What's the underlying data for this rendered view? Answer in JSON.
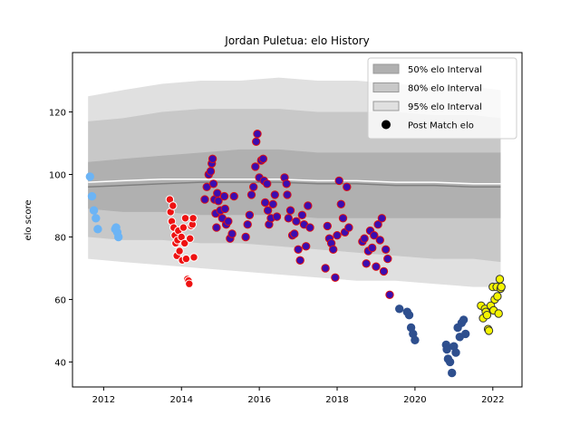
{
  "chart_data": {
    "type": "scatter",
    "title": "Jordan Puletua: elo History",
    "xlabel": "",
    "ylabel": "elo score",
    "xlim": [
      2011.2,
      2022.75
    ],
    "ylim": [
      32,
      139
    ],
    "xticks": [
      2012,
      2014,
      2016,
      2018,
      2020,
      2022
    ],
    "xtick_labels": [
      "2012",
      "2014",
      "2016",
      "2018",
      "2020",
      "2022"
    ],
    "yticks": [
      40,
      60,
      80,
      100,
      120
    ],
    "ytick_labels": [
      "40",
      "60",
      "80",
      "100",
      "120"
    ],
    "grid": false,
    "legend_placement": "top-right",
    "legend": [
      {
        "label": "50% elo Interval",
        "kind": "band",
        "color": "#b0b0b0"
      },
      {
        "label": "80% elo Interval",
        "kind": "band",
        "color": "#c8c8c8"
      },
      {
        "label": "95% elo Interval",
        "kind": "band",
        "color": "#e0e0e0"
      },
      {
        "label": "Post Match elo",
        "kind": "marker",
        "color": "#000000"
      }
    ],
    "colors": {
      "band50": "#b0b0b0",
      "band80": "#c8c8c8",
      "band95": "#e0e0e0",
      "median": "#808080",
      "mean": "#ffffff"
    },
    "interval_x": [
      2011.6,
      2012.5,
      2013.5,
      2014.5,
      2015.5,
      2016.5,
      2017.5,
      2018.5,
      2019.5,
      2020.5,
      2021.5,
      2022.2
    ],
    "band95": {
      "upper": [
        125,
        127,
        129,
        130,
        130,
        131,
        130,
        130,
        129,
        128,
        128,
        127
      ],
      "lower": [
        73,
        72,
        71,
        70,
        69,
        68,
        67,
        66,
        66,
        65,
        64,
        64
      ]
    },
    "band80": {
      "upper": [
        117,
        118,
        120,
        121,
        121,
        121,
        120,
        120,
        120,
        119,
        119,
        118
      ],
      "lower": [
        80,
        79,
        79,
        78,
        78,
        77,
        76,
        75,
        74,
        73,
        73,
        72
      ]
    },
    "band50": {
      "upper": [
        104,
        105,
        106,
        107,
        108,
        108,
        107,
        107,
        107,
        107,
        107,
        107
      ],
      "lower": [
        89,
        88,
        88,
        87,
        87,
        87,
        86,
        86,
        86,
        86,
        86,
        86
      ]
    },
    "median_line": [
      96,
      96.5,
      97,
      97.5,
      97.5,
      97.5,
      97,
      97,
      96.5,
      96.5,
      96,
      96
    ],
    "mean_line": [
      97.5,
      98,
      98.5,
      98.5,
      98.5,
      98.5,
      98,
      98,
      97.5,
      97.5,
      97,
      97
    ],
    "series": [
      {
        "color": "#6cb4f5",
        "edge": "#6cb4f5",
        "x": [
          2011.65,
          2011.7,
          2011.75,
          2011.8,
          2011.85,
          2012.3,
          2012.32,
          2012.35,
          2012.38
        ],
        "y": [
          99.3,
          93,
          88.5,
          86,
          82.5,
          82.5,
          83,
          81.5,
          80
        ]
      },
      {
        "color": "#ee1111",
        "edge": "#ffffff",
        "x": [
          2013.7,
          2013.72,
          2013.75,
          2013.78,
          2013.8,
          2013.83,
          2013.85,
          2013.88,
          2013.9,
          2013.92,
          2013.95,
          2014.0,
          2014.02,
          2014.05,
          2014.08,
          2014.1,
          2014.12,
          2014.15,
          2014.18,
          2014.2,
          2014.22,
          2014.25,
          2014.28,
          2014.3,
          2014.32
        ],
        "y": [
          92,
          88,
          85,
          90,
          83,
          80.5,
          78,
          74,
          79,
          82,
          75.5,
          80,
          72.5,
          83,
          78,
          86,
          73,
          66.5,
          66,
          65,
          79.5,
          83.5,
          84,
          86,
          73.5
        ]
      },
      {
        "color": "#3b0db0",
        "edge": "#dd1111",
        "x": [
          2014.6,
          2014.65,
          2014.7,
          2014.75,
          2014.78,
          2014.8,
          2014.82,
          2014.85,
          2014.88,
          2014.9,
          2014.92,
          2014.95,
          2015.0,
          2015.05,
          2015.1,
          2015.12,
          2015.15,
          2015.2,
          2015.25,
          2015.3,
          2015.35,
          2015.65,
          2015.7,
          2015.75,
          2015.8,
          2015.85,
          2015.9,
          2015.92,
          2015.95,
          2016.0,
          2016.05,
          2016.1,
          2016.12,
          2016.15,
          2016.2,
          2016.22,
          2016.25,
          2016.3,
          2016.35,
          2016.4,
          2016.45,
          2016.65,
          2016.7,
          2016.72,
          2016.75,
          2016.8,
          2016.85,
          2016.9,
          2016.95,
          2017.0,
          2017.05,
          2017.1,
          2017.15,
          2017.2,
          2017.25,
          2017.3,
          2017.7,
          2017.75,
          2017.8,
          2017.85,
          2017.9,
          2017.95,
          2018.0,
          2018.05,
          2018.1,
          2018.15,
          2018.2,
          2018.25,
          2018.3,
          2018.65,
          2018.7,
          2018.75,
          2018.8,
          2018.85,
          2018.9,
          2018.95,
          2019.0,
          2019.05,
          2019.1,
          2019.15,
          2019.2,
          2019.25,
          2019.3,
          2019.35
        ],
        "y": [
          92,
          96,
          100,
          101,
          103.5,
          105,
          97,
          92,
          87.5,
          83,
          94,
          91.5,
          88.5,
          86,
          93,
          89,
          84,
          85,
          79.5,
          81,
          93,
          80,
          84,
          87,
          93.5,
          96,
          102.5,
          110.5,
          113,
          99,
          104.5,
          105,
          98,
          91,
          97,
          88.5,
          84,
          86,
          90.5,
          93.5,
          86.5,
          99,
          97,
          93.5,
          86,
          88.5,
          80.5,
          81,
          85,
          76,
          72.5,
          87,
          84,
          77,
          90,
          83,
          70,
          83.5,
          79.5,
          78,
          76,
          67,
          80.5,
          98,
          90.5,
          86,
          81.5,
          96,
          83,
          78.5,
          79.5,
          71.5,
          75.5,
          82,
          76.5,
          80.5,
          70.5,
          84,
          79,
          86,
          69,
          76,
          73,
          61.5
        ]
      },
      {
        "color": "#2e4f8e",
        "edge": "#2e4f8e",
        "x": [
          2019.6,
          2019.8,
          2019.85,
          2019.9,
          2019.95,
          2020.0,
          2020.8,
          2020.82,
          2020.85,
          2020.9,
          2020.95,
          2021.0,
          2021.05,
          2021.1,
          2021.15,
          2021.2,
          2021.25,
          2021.3
        ],
        "y": [
          57,
          56,
          55,
          51,
          49,
          47,
          45.5,
          44,
          41,
          40,
          36.5,
          45,
          43,
          51,
          48,
          52.5,
          53.5,
          49
        ]
      },
      {
        "color": "#f5f500",
        "edge": "#333333",
        "x": [
          2021.7,
          2021.75,
          2021.8,
          2021.82,
          2021.85,
          2021.88,
          2021.9,
          2021.95,
          2022.0,
          2022.02,
          2022.05,
          2022.1,
          2022.12,
          2022.15,
          2022.18,
          2022.2,
          2022.22
        ],
        "y": [
          58,
          54,
          57,
          56,
          55,
          50.5,
          50,
          58,
          64,
          56.5,
          60,
          64,
          61,
          55.5,
          66.5,
          63.5,
          64
        ]
      }
    ]
  }
}
